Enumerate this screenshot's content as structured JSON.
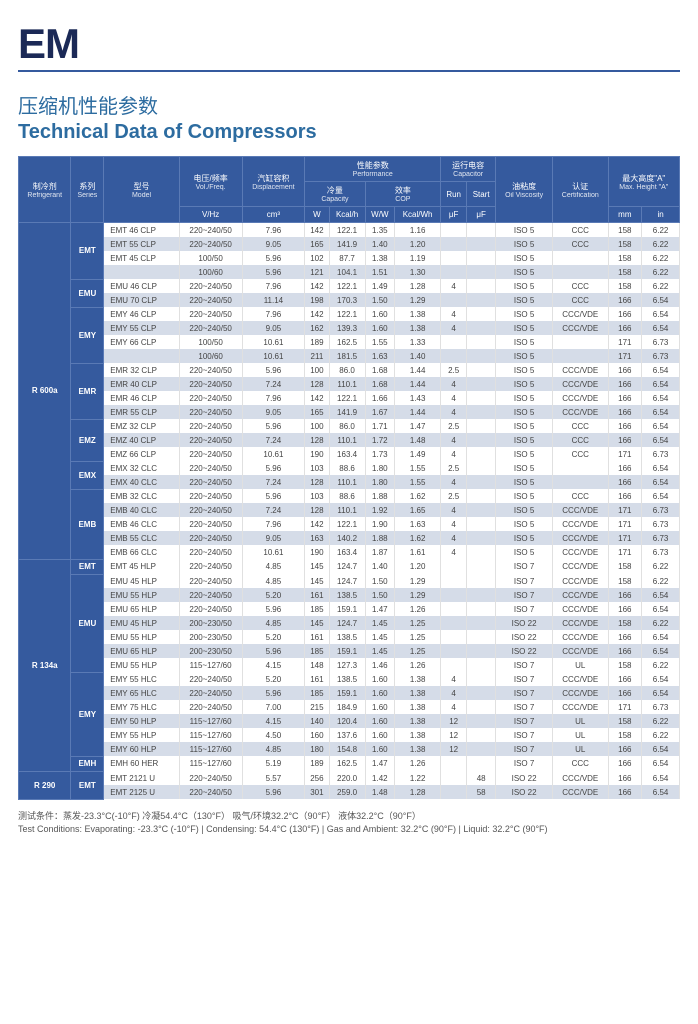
{
  "logo": "EM",
  "title_cn": "压缩机性能参数",
  "title_en": "Technical Data of Compressors",
  "headers": {
    "refrigerant": {
      "cn": "制冷剂",
      "en": "Refrigerant"
    },
    "series": {
      "cn": "系列",
      "en": "Series"
    },
    "model": {
      "cn": "型号",
      "en": "Model"
    },
    "volfreq": {
      "cn": "电压/频率",
      "en": "Vol./Freq.",
      "unit": "V/Hz"
    },
    "disp": {
      "cn": "汽缸容积",
      "en": "Displacement",
      "unit": "cm³"
    },
    "perf": {
      "cn": "性能参数",
      "en": "Performance"
    },
    "cap": {
      "cn": "冷量",
      "en": "Capacity"
    },
    "cop": {
      "cn": "效率",
      "en": "COP"
    },
    "capacitor": {
      "cn": "运行电容",
      "en": "Capacitor"
    },
    "run": {
      "en": "Run",
      "unit": "μF"
    },
    "start": {
      "en": "Start",
      "unit": "μF"
    },
    "oil": {
      "cn": "油粘度",
      "en": "Oil Viscosity"
    },
    "cert": {
      "cn": "认证",
      "en": "Certification"
    },
    "height": {
      "cn": "最大高度\"A\"",
      "en": "Max. Height \"A\""
    },
    "w": "W",
    "kcal": "Kcal/h",
    "ww": "W/W",
    "kcalwh": "Kcal/Wh",
    "mm": "mm",
    "in": "in"
  },
  "groups": [
    {
      "refrigerant": "R 600a",
      "series": [
        {
          "name": "EMT",
          "rows": [
            [
              "EMT 46 CLP",
              "220~240/50",
              "7.96",
              "142",
              "122.1",
              "1.35",
              "1.16",
              "",
              "",
              "ISO 5",
              "CCC",
              "158",
              "6.22"
            ],
            [
              "EMT 55 CLP",
              "220~240/50",
              "9.05",
              "165",
              "141.9",
              "1.40",
              "1.20",
              "",
              "",
              "ISO 5",
              "CCC",
              "158",
              "6.22"
            ],
            [
              "EMT 45 CLP",
              "100/50",
              "5.96",
              "102",
              "87.7",
              "1.38",
              "1.19",
              "",
              "",
              "ISO 5",
              "",
              "158",
              "6.22"
            ],
            [
              "",
              "100/60",
              "5.96",
              "121",
              "104.1",
              "1.51",
              "1.30",
              "",
              "",
              "ISO 5",
              "",
              "158",
              "6.22"
            ]
          ]
        },
        {
          "name": "EMU",
          "rows": [
            [
              "EMU 46 CLP",
              "220~240/50",
              "7.96",
              "142",
              "122.1",
              "1.49",
              "1.28",
              "4",
              "",
              "ISO 5",
              "CCC",
              "158",
              "6.22"
            ],
            [
              "EMU 70 CLP",
              "220~240/50",
              "11.14",
              "198",
              "170.3",
              "1.50",
              "1.29",
              "",
              "",
              "ISO 5",
              "CCC",
              "166",
              "6.54"
            ]
          ]
        },
        {
          "name": "EMY",
          "rows": [
            [
              "EMY 46 CLP",
              "220~240/50",
              "7.96",
              "142",
              "122.1",
              "1.60",
              "1.38",
              "4",
              "",
              "ISO 5",
              "CCC/VDE",
              "166",
              "6.54"
            ],
            [
              "EMY 55 CLP",
              "220~240/50",
              "9.05",
              "162",
              "139.3",
              "1.60",
              "1.38",
              "4",
              "",
              "ISO 5",
              "CCC/VDE",
              "166",
              "6.54"
            ],
            [
              "EMY 66 CLP",
              "100/50",
              "10.61",
              "189",
              "162.5",
              "1.55",
              "1.33",
              "",
              "",
              "ISO 5",
              "",
              "171",
              "6.73"
            ],
            [
              "",
              "100/60",
              "10.61",
              "211",
              "181.5",
              "1.63",
              "1.40",
              "",
              "",
              "ISO 5",
              "",
              "171",
              "6.73"
            ]
          ]
        },
        {
          "name": "EMR",
          "rows": [
            [
              "EMR 32 CLP",
              "220~240/50",
              "5.96",
              "100",
              "86.0",
              "1.68",
              "1.44",
              "2.5",
              "",
              "ISO 5",
              "CCC/VDE",
              "166",
              "6.54"
            ],
            [
              "EMR 40 CLP",
              "220~240/50",
              "7.24",
              "128",
              "110.1",
              "1.68",
              "1.44",
              "4",
              "",
              "ISO 5",
              "CCC/VDE",
              "166",
              "6.54"
            ],
            [
              "EMR 46 CLP",
              "220~240/50",
              "7.96",
              "142",
              "122.1",
              "1.66",
              "1.43",
              "4",
              "",
              "ISO 5",
              "CCC/VDE",
              "166",
              "6.54"
            ],
            [
              "EMR 55 CLP",
              "220~240/50",
              "9.05",
              "165",
              "141.9",
              "1.67",
              "1.44",
              "4",
              "",
              "ISO 5",
              "CCC/VDE",
              "166",
              "6.54"
            ]
          ]
        },
        {
          "name": "EMZ",
          "rows": [
            [
              "EMZ 32 CLP",
              "220~240/50",
              "5.96",
              "100",
              "86.0",
              "1.71",
              "1.47",
              "2.5",
              "",
              "ISO 5",
              "CCC",
              "166",
              "6.54"
            ],
            [
              "EMZ 40 CLP",
              "220~240/50",
              "7.24",
              "128",
              "110.1",
              "1.72",
              "1.48",
              "4",
              "",
              "ISO 5",
              "CCC",
              "166",
              "6.54"
            ],
            [
              "EMZ 66 CLP",
              "220~240/50",
              "10.61",
              "190",
              "163.4",
              "1.73",
              "1.49",
              "4",
              "",
              "ISO 5",
              "CCC",
              "171",
              "6.73"
            ]
          ]
        },
        {
          "name": "EMX",
          "rows": [
            [
              "EMX 32 CLC",
              "220~240/50",
              "5.96",
              "103",
              "88.6",
              "1.80",
              "1.55",
              "2.5",
              "",
              "ISO 5",
              "",
              "166",
              "6.54"
            ],
            [
              "EMX 40 CLC",
              "220~240/50",
              "7.24",
              "128",
              "110.1",
              "1.80",
              "1.55",
              "4",
              "",
              "ISO 5",
              "",
              "166",
              "6.54"
            ]
          ]
        },
        {
          "name": "EMB",
          "rows": [
            [
              "EMB 32 CLC",
              "220~240/50",
              "5.96",
              "103",
              "88.6",
              "1.88",
              "1.62",
              "2.5",
              "",
              "ISO 5",
              "CCC",
              "166",
              "6.54"
            ],
            [
              "EMB 40 CLC",
              "220~240/50",
              "7.24",
              "128",
              "110.1",
              "1.92",
              "1.65",
              "4",
              "",
              "ISO 5",
              "CCC/VDE",
              "171",
              "6.73"
            ],
            [
              "EMB 46 CLC",
              "220~240/50",
              "7.96",
              "142",
              "122.1",
              "1.90",
              "1.63",
              "4",
              "",
              "ISO 5",
              "CCC/VDE",
              "171",
              "6.73"
            ],
            [
              "EMB 55 CLC",
              "220~240/50",
              "9.05",
              "163",
              "140.2",
              "1.88",
              "1.62",
              "4",
              "",
              "ISO 5",
              "CCC/VDE",
              "171",
              "6.73"
            ],
            [
              "EMB 66 CLC",
              "220~240/50",
              "10.61",
              "190",
              "163.4",
              "1.87",
              "1.61",
              "4",
              "",
              "ISO 5",
              "CCC/VDE",
              "171",
              "6.73"
            ]
          ]
        }
      ]
    },
    {
      "refrigerant": "R 134a",
      "series": [
        {
          "name": "EMT",
          "rows": [
            [
              "EMT 45 HLP",
              "220~240/50",
              "4.85",
              "145",
              "124.7",
              "1.40",
              "1.20",
              "",
              "",
              "ISO 7",
              "CCC/VDE",
              "158",
              "6.22"
            ]
          ]
        },
        {
          "name": "EMU",
          "rows": [
            [
              "EMU 45 HLP",
              "220~240/50",
              "4.85",
              "145",
              "124.7",
              "1.50",
              "1.29",
              "",
              "",
              "ISO 7",
              "CCC/VDE",
              "158",
              "6.22"
            ],
            [
              "EMU 55 HLP",
              "220~240/50",
              "5.20",
              "161",
              "138.5",
              "1.50",
              "1.29",
              "",
              "",
              "ISO 7",
              "CCC/VDE",
              "166",
              "6.54"
            ],
            [
              "EMU 65 HLP",
              "220~240/50",
              "5.96",
              "185",
              "159.1",
              "1.47",
              "1.26",
              "",
              "",
              "ISO 7",
              "CCC/VDE",
              "166",
              "6.54"
            ],
            [
              "EMU 45 HLP",
              "200~230/50",
              "4.85",
              "145",
              "124.7",
              "1.45",
              "1.25",
              "",
              "",
              "ISO 22",
              "CCC/VDE",
              "158",
              "6.22"
            ],
            [
              "EMU 55 HLP",
              "200~230/50",
              "5.20",
              "161",
              "138.5",
              "1.45",
              "1.25",
              "",
              "",
              "ISO 22",
              "CCC/VDE",
              "166",
              "6.54"
            ],
            [
              "EMU 65 HLP",
              "200~230/50",
              "5.96",
              "185",
              "159.1",
              "1.45",
              "1.25",
              "",
              "",
              "ISO 22",
              "CCC/VDE",
              "166",
              "6.54"
            ],
            [
              "EMU 55 HLP",
              "115~127/60",
              "4.15",
              "148",
              "127.3",
              "1.46",
              "1.26",
              "",
              "",
              "ISO 7",
              "UL",
              "158",
              "6.22"
            ]
          ]
        },
        {
          "name": "EMY",
          "rows": [
            [
              "EMY 55 HLC",
              "220~240/50",
              "5.20",
              "161",
              "138.5",
              "1.60",
              "1.38",
              "4",
              "",
              "ISO 7",
              "CCC/VDE",
              "166",
              "6.54"
            ],
            [
              "EMY 65 HLC",
              "220~240/50",
              "5.96",
              "185",
              "159.1",
              "1.60",
              "1.38",
              "4",
              "",
              "ISO 7",
              "CCC/VDE",
              "166",
              "6.54"
            ],
            [
              "EMY 75 HLC",
              "220~240/50",
              "7.00",
              "215",
              "184.9",
              "1.60",
              "1.38",
              "4",
              "",
              "ISO 7",
              "CCC/VDE",
              "171",
              "6.73"
            ],
            [
              "EMY 50 HLP",
              "115~127/60",
              "4.15",
              "140",
              "120.4",
              "1.60",
              "1.38",
              "12",
              "",
              "ISO 7",
              "UL",
              "158",
              "6.22"
            ],
            [
              "EMY 55 HLP",
              "115~127/60",
              "4.50",
              "160",
              "137.6",
              "1.60",
              "1.38",
              "12",
              "",
              "ISO 7",
              "UL",
              "158",
              "6.22"
            ],
            [
              "EMY 60 HLP",
              "115~127/60",
              "4.85",
              "180",
              "154.8",
              "1.60",
              "1.38",
              "12",
              "",
              "ISO 7",
              "UL",
              "166",
              "6.54"
            ]
          ]
        },
        {
          "name": "EMH",
          "rows": [
            [
              "EMH 60 HER",
              "115~127/60",
              "5.19",
              "189",
              "162.5",
              "1.47",
              "1.26",
              "",
              "",
              "ISO 7",
              "CCC",
              "166",
              "6.54"
            ]
          ]
        }
      ]
    },
    {
      "refrigerant": "R 290",
      "series": [
        {
          "name": "EMT",
          "rows": [
            [
              "EMT 2121 U",
              "220~240/50",
              "5.57",
              "256",
              "220.0",
              "1.42",
              "1.22",
              "",
              "48",
              "ISO 22",
              "CCC/VDE",
              "166",
              "6.54"
            ],
            [
              "EMT 2125 U",
              "220~240/50",
              "5.96",
              "301",
              "259.0",
              "1.48",
              "1.28",
              "",
              "58",
              "ISO 22",
              "CCC/VDE",
              "166",
              "6.54"
            ]
          ]
        }
      ]
    }
  ],
  "footer_cn": "测试条件：蒸发-23.3°C(-10°F)  冷凝54.4°C（130°F）  吸气/环境32.2°C（90°F）  液体32.2°C（90°F）",
  "footer_en": "Test Conditions: Evaporating: -23.3°C (-10°F)  |  Condensing: 54.4°C (130°F)  |  Gas and Ambient: 32.2°C (90°F)  |  Liquid: 32.2°C (90°F)"
}
